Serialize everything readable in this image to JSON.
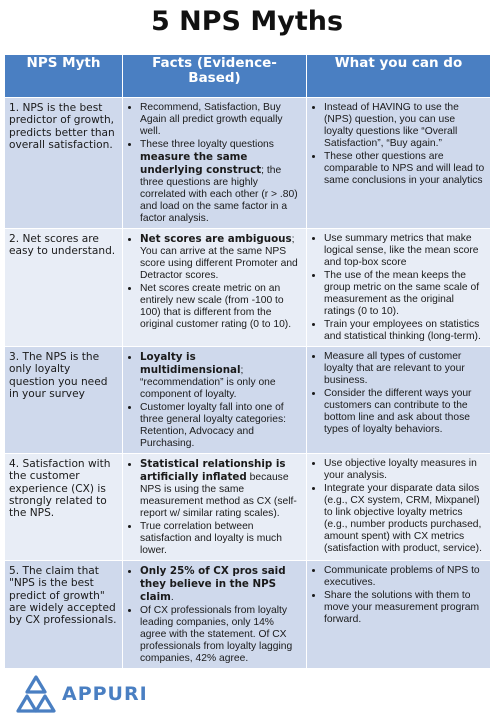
{
  "title": "5 NPS Myths",
  "headers": {
    "myth": "NPS Myth",
    "facts": "Facts (Evidence-Based)",
    "action": "What you can do"
  },
  "rows": [
    {
      "myth": "1. NPS is the best predictor of growth, predicts better than overall satisfaction.",
      "facts": [
        {
          "pre": "Recommend, Satisfaction, Buy Again all predict growth equally well.",
          "bold": "",
          "post": ""
        },
        {
          "pre": "These three loyalty questions ",
          "bold": "measure the same underlying construct",
          "post": "; the three questions are highly correlated with each other (r > .80) and load on the same factor in a factor analysis."
        }
      ],
      "actions": [
        "Instead of HAVING to use the (NPS) question, you can use loyalty questions like “Overall Satisfaction”, “Buy again.”",
        "These other questions are comparable to NPS and will lead to same conclusions in your analytics"
      ]
    },
    {
      "myth": "2. Net scores are easy to understand.",
      "facts": [
        {
          "pre": "",
          "bold": "Net scores are ambiguous",
          "post": "; You can arrive at the same NPS score using different Promoter and Detractor scores."
        },
        {
          "pre": "Net scores create metric on an entirely new scale (from -100 to 100) that is different from the original customer rating (0 to 10).",
          "bold": "",
          "post": ""
        }
      ],
      "actions": [
        "Use summary metrics that make logical sense, like the mean score and top-box score",
        "The use of the mean keeps the group metric on the same scale of measurement as the original ratings (0 to 10).",
        "Train your employees on statistics and statistical thinking (long-term)."
      ]
    },
    {
      "myth": "3. The NPS is the only loyalty question you need in your survey",
      "facts": [
        {
          "pre": "",
          "bold": "Loyalty is multidimensional",
          "post": "; “recommendation” is only one component of loyalty."
        },
        {
          "pre": "Customer loyalty fall into one of three general loyalty categories: Retention, Advocacy and Purchasing.",
          "bold": "",
          "post": ""
        }
      ],
      "actions": [
        "Measure all types of customer loyalty that are relevant to your business.",
        "Consider the different ways your customers can contribute to the bottom line and ask about those types of loyalty behaviors."
      ]
    },
    {
      "myth": "4. Satisfaction with the customer experience (CX) is strongly related to the NPS.",
      "facts": [
        {
          "pre": "",
          "bold": "Statistical relationship is artificially inflated",
          "post": " because NPS is using the same measurement method as CX (self-report w/ similar rating scales)."
        },
        {
          "pre": "True correlation between satisfaction and loyalty is much lower.",
          "bold": "",
          "post": ""
        }
      ],
      "actions": [
        "Use objective loyalty measures in your analysis.",
        "Integrate your disparate data silos (e.g., CX system, CRM, Mixpanel) to link objective loyalty metrics (e.g., number products purchased, amount spent) with CX metrics (satisfaction with product, service)."
      ]
    },
    {
      "myth": "5. The claim that \"NPS is the best predict of growth\" are widely accepted by CX professionals.",
      "facts": [
        {
          "pre": "",
          "bold": "Only 25% of CX pros said they believe in the NPS claim",
          "post": "."
        },
        {
          "pre": "Of CX professionals from loyalty leading companies, only 14% agree with the statement. Of CX professionals from loyalty lagging companies, 42% agree.",
          "bold": "",
          "post": ""
        }
      ],
      "actions": [
        "Communicate problems of NPS to executives.",
        "Share the solutions with them to move your measurement program forward."
      ]
    }
  ],
  "footer": {
    "brand": "APPURI",
    "logo_icon": "appuri-logo-icon"
  },
  "colors": {
    "header_bg": "#4a7fc2",
    "row_dark": "#cfd9ec",
    "row_light": "#e8edf6",
    "brand": "#4a7fc2"
  }
}
